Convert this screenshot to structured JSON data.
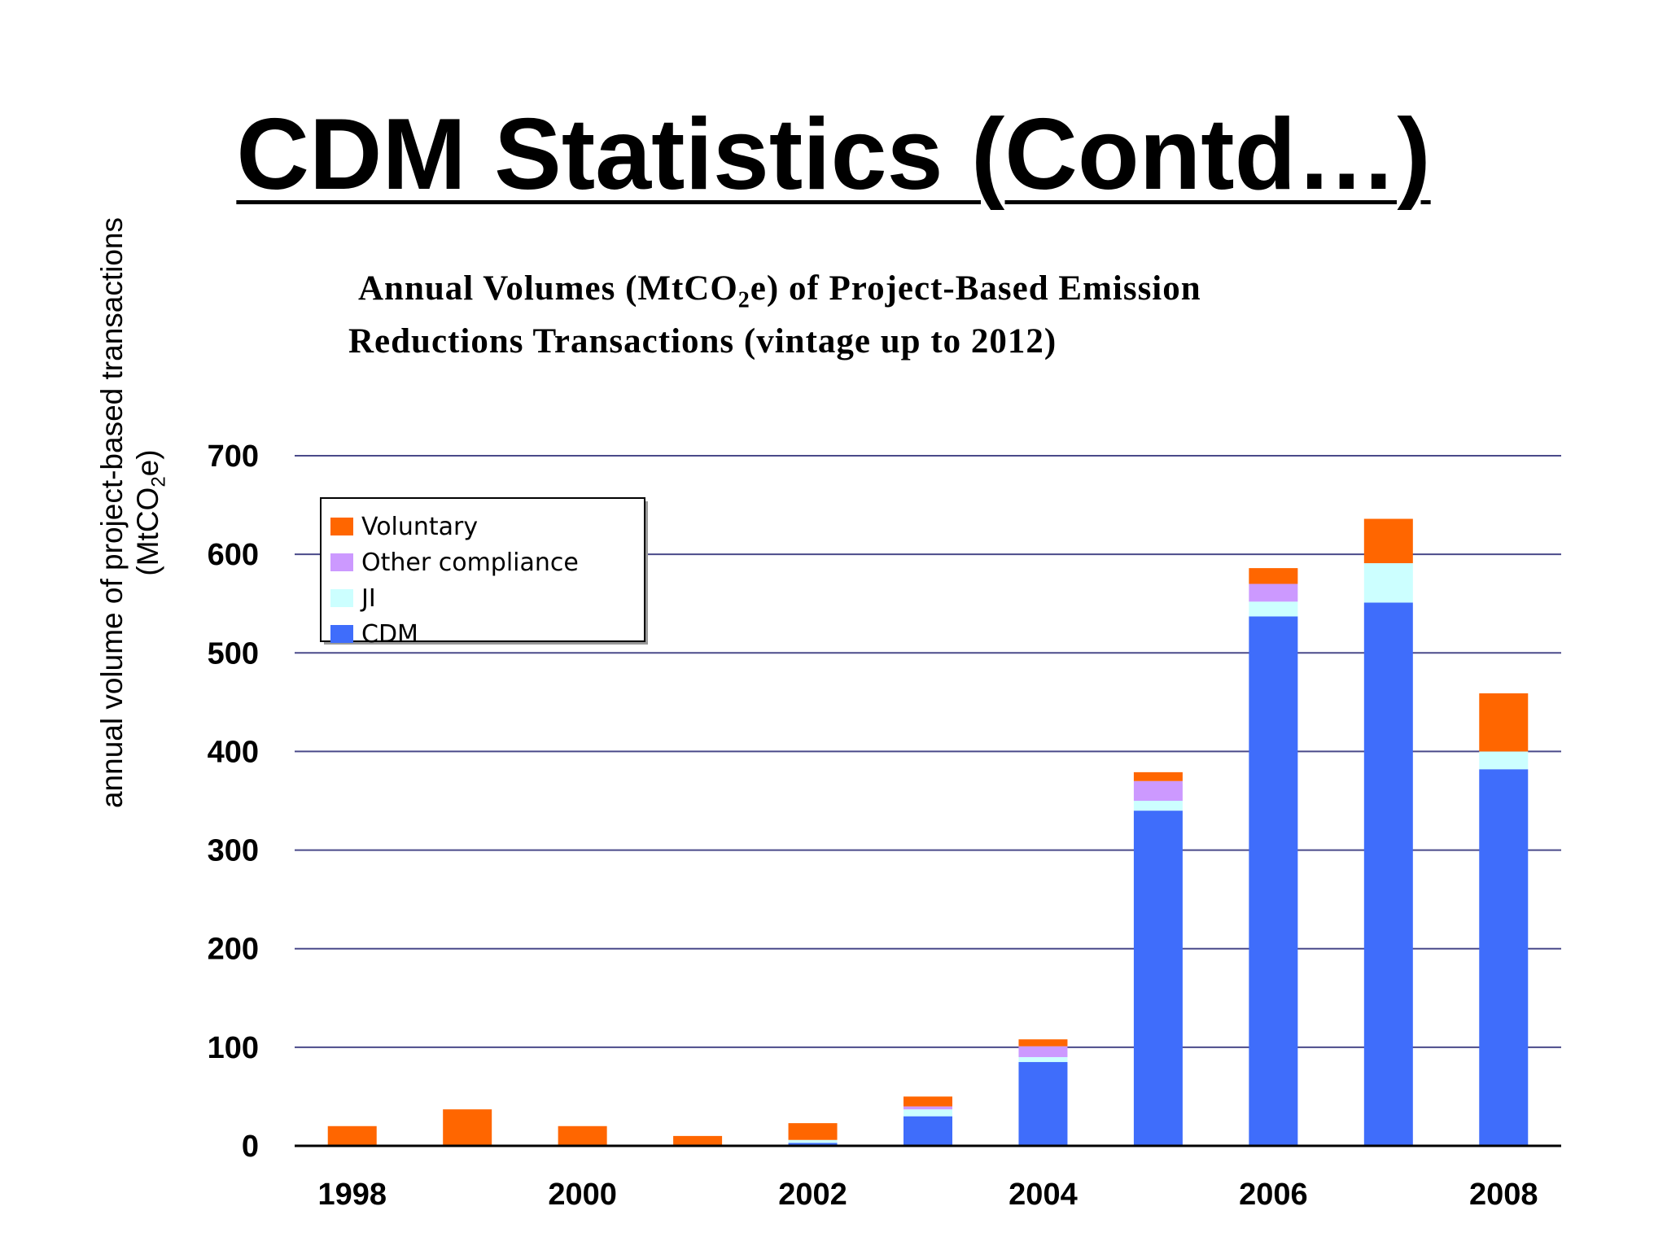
{
  "slide": {
    "title": "CDM Statistics (Contd…)"
  },
  "chart_data": {
    "type": "bar",
    "stacked": true,
    "title_line1": "Annual Volumes (MtCO",
    "title_sub": "2",
    "title_line1_end": "e) of Project-Based Emission",
    "title_line2": "Reductions Transactions (vintage up to 2012)",
    "ylabel_line1": "annual volume of project-based transactions",
    "ylabel_line2_pre": "(MtCO",
    "ylabel_line2_sub": "2",
    "ylabel_line2_post": "e)",
    "xlabel": "",
    "x": [
      1998,
      1999,
      2000,
      2001,
      2002,
      2003,
      2004,
      2005,
      2006,
      2007,
      2008
    ],
    "x_tick_labels": [
      "1998",
      "2000",
      "2002",
      "2004",
      "2006",
      "2008"
    ],
    "y_ticks": [
      0,
      100,
      200,
      300,
      400,
      500,
      600,
      700
    ],
    "ylim": [
      0,
      700
    ],
    "grid": true,
    "legend_position": "top-left",
    "series": [
      {
        "name": "CDM",
        "color": "#3f6dfb",
        "values": [
          0,
          0,
          0,
          0,
          3,
          30,
          85,
          340,
          537,
          551,
          382
        ]
      },
      {
        "name": "JI",
        "color": "#ccffff",
        "values": [
          0,
          0,
          0,
          0,
          3,
          7,
          5,
          10,
          15,
          40,
          18
        ]
      },
      {
        "name": "Other compliance",
        "color": "#cc99ff",
        "values": [
          0,
          0,
          0,
          0,
          0,
          3,
          11,
          20,
          18,
          0,
          0
        ]
      },
      {
        "name": "Voluntary",
        "color": "#ff6600",
        "values": [
          20,
          37,
          20,
          10,
          17,
          10,
          7,
          9,
          16,
          45,
          59
        ]
      }
    ],
    "legend_order": [
      "Voluntary",
      "Other compliance",
      "JI",
      "CDM"
    ],
    "colors": {
      "grid": "#4a4a8a",
      "axis": "#000000"
    }
  }
}
